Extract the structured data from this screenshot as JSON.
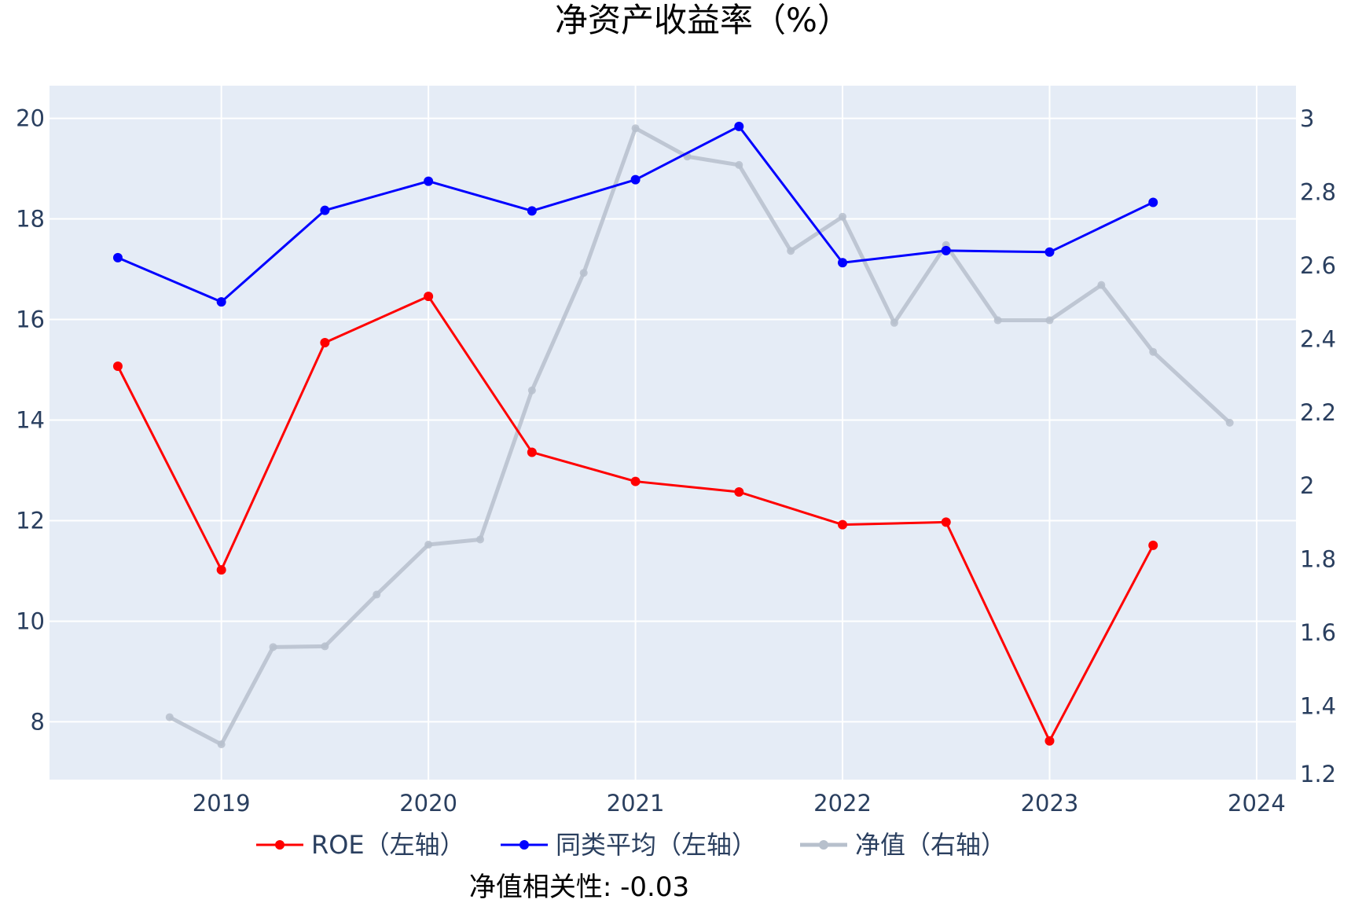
{
  "chart_data": {
    "type": "line",
    "title": "净资产收益率（%）",
    "annotation": "净值相关性: -0.03",
    "x_ticks": [
      "2019",
      "2020",
      "2021",
      "2022",
      "2023",
      "2024"
    ],
    "x_tick_values": [
      2019,
      2020,
      2021,
      2022,
      2023,
      2024
    ],
    "xlim": [
      2018.17,
      2024.19
    ],
    "y_left": {
      "ticks": [
        8,
        10,
        12,
        14,
        16,
        18,
        20
      ],
      "ylim": [
        6.85,
        20.65
      ]
    },
    "y_right": {
      "ticks": [
        1.2,
        1.4,
        1.6,
        1.8,
        2,
        2.2,
        2.4,
        2.6,
        2.8,
        3
      ],
      "ticks_labels": [
        "1.2",
        "1.4",
        "1.6",
        "1.8",
        "2",
        "2.2",
        "2.4",
        "2.6",
        "2.8",
        "3"
      ],
      "ylim": [
        1.2,
        3.09
      ]
    },
    "grid": true,
    "legend_position": "bottom",
    "series": [
      {
        "name": "ROE（左轴）",
        "axis": "left",
        "color": "#ff0000",
        "x": [
          2018.5,
          2019,
          2019.5,
          2020,
          2020.5,
          2021,
          2021.5,
          2022,
          2022.5,
          2023,
          2023.5
        ],
        "values": [
          15.07,
          11.02,
          15.54,
          16.46,
          13.36,
          12.78,
          12.57,
          11.92,
          11.97,
          7.62,
          11.51
        ]
      },
      {
        "name": "同类平均（左轴）",
        "axis": "left",
        "color": "#0000ff",
        "x": [
          2018.5,
          2019,
          2019.5,
          2020,
          2020.5,
          2021,
          2021.5,
          2022,
          2022.5,
          2023,
          2023.5
        ],
        "values": [
          17.23,
          16.35,
          18.17,
          18.75,
          18.16,
          18.78,
          19.84,
          17.13,
          17.37,
          17.34,
          18.33
        ]
      },
      {
        "name": "净值（右轴）",
        "axis": "right",
        "color": "#b7c0cc",
        "x": [
          2018.75,
          2019,
          2019.25,
          2019.5,
          2019.75,
          2020,
          2020.25,
          2020.5,
          2020.75,
          2021,
          2021.25,
          2021.5,
          2021.75,
          2022,
          2022.25,
          2022.5,
          2022.75,
          2023,
          2023.25,
          2023.5,
          2023.87
        ],
        "values": [
          1.37,
          1.296,
          1.561,
          1.563,
          1.704,
          1.84,
          1.854,
          2.26,
          2.58,
          2.974,
          2.897,
          2.874,
          2.64,
          2.733,
          2.444,
          2.656,
          2.451,
          2.451,
          2.547,
          2.365,
          2.172
        ]
      }
    ]
  }
}
